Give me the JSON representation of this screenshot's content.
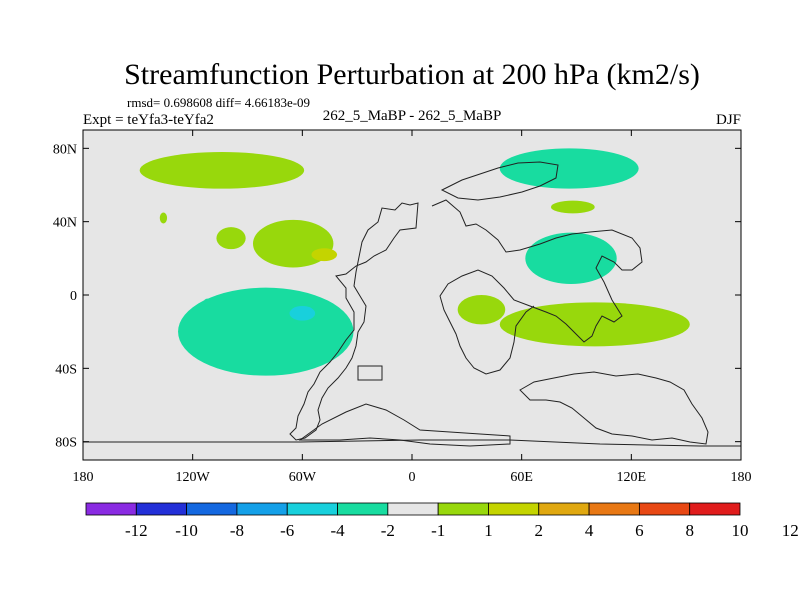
{
  "chart_data": {
    "type": "contour-map",
    "title": "Streamfunction Perturbation at 200 hPa (km2/s)",
    "stats": "rmsd= 0.698608 diff= 4.66183e-09",
    "experiment_label": "Expt = teYfa3-teYfa2",
    "case_label": "262_5_MaBP - 262_5_MaBP",
    "season": "DJF",
    "xlim": [
      -180,
      180
    ],
    "ylim": [
      -90,
      90
    ],
    "xticks": [
      {
        "value": -180,
        "label": "180"
      },
      {
        "value": -120,
        "label": "120W"
      },
      {
        "value": -60,
        "label": "60W"
      },
      {
        "value": 0,
        "label": "0"
      },
      {
        "value": 60,
        "label": "60E"
      },
      {
        "value": 120,
        "label": "120E"
      },
      {
        "value": 180,
        "label": "180"
      }
    ],
    "yticks": [
      {
        "value": 80,
        "label": "80N"
      },
      {
        "value": 40,
        "label": "40N"
      },
      {
        "value": 0,
        "label": "0"
      },
      {
        "value": -40,
        "label": "40S"
      },
      {
        "value": -80,
        "label": "80S"
      }
    ],
    "colorbar": {
      "colors": [
        "#8a2be2",
        "#2330d8",
        "#1468e0",
        "#14a0e8",
        "#18d0dc",
        "#18dca0",
        "#e6e6e6",
        "#98d80c",
        "#c4d400",
        "#e0a810",
        "#e87814",
        "#e84814",
        "#e01c1c"
      ],
      "labels": [
        "-12",
        "-10",
        "-8",
        "-6",
        "-4",
        "-2",
        "-1",
        "1",
        "2",
        "4",
        "6",
        "8",
        "10",
        "12"
      ]
    },
    "regions": [
      {
        "name": "north-pacific-high",
        "sign": "positive",
        "bin": 7,
        "lon": -104,
        "lat": 68,
        "rx": 45,
        "ry": 10
      },
      {
        "name": "north-atlantic-low",
        "sign": "negative",
        "bin": 5,
        "lon": 86,
        "lat": 69,
        "rx": 38,
        "ry": 11
      },
      {
        "name": "ne-pacific-high",
        "sign": "positive",
        "bin": 7,
        "lon": -65,
        "lat": 28,
        "rx": 22,
        "ry": 13
      },
      {
        "name": "ne-pacific-high-core",
        "sign": "positive",
        "bin": 8,
        "lon": -48,
        "lat": 22,
        "rx": 7,
        "ry": 3.5
      },
      {
        "name": "east-pacific-high",
        "sign": "positive",
        "bin": 7,
        "lon": -99,
        "lat": 31,
        "rx": 8,
        "ry": 6
      },
      {
        "name": "west-pacific-dot",
        "sign": "positive",
        "bin": 7,
        "lon": -136,
        "lat": 42,
        "rx": 2,
        "ry": 3
      },
      {
        "name": "asia-low",
        "sign": "negative",
        "bin": 5,
        "lon": 87,
        "lat": 20,
        "rx": 25,
        "ry": 14
      },
      {
        "name": "siberia-high",
        "sign": "positive",
        "bin": 7,
        "lon": 88,
        "lat": 48,
        "rx": 12,
        "ry": 3.5
      },
      {
        "name": "south-pacific-low",
        "sign": "negative",
        "bin": 5,
        "lon": -80,
        "lat": -20,
        "rx": 48,
        "ry": 24
      },
      {
        "name": "south-pacific-low-core",
        "sign": "negative",
        "bin": 4,
        "lon": -60,
        "lat": -10,
        "rx": 7,
        "ry": 4
      },
      {
        "name": "sub-pacific-dot",
        "sign": "negative",
        "bin": 5,
        "lon": -112,
        "lat": -4,
        "rx": 2,
        "ry": 2
      },
      {
        "name": "indian-ocean-high",
        "sign": "positive",
        "bin": 7,
        "lon": 38,
        "lat": -8,
        "rx": 13,
        "ry": 8
      },
      {
        "name": "australia-high",
        "sign": "positive",
        "bin": 7,
        "lon": 100,
        "lat": -16,
        "rx": 52,
        "ry": 12
      }
    ]
  }
}
